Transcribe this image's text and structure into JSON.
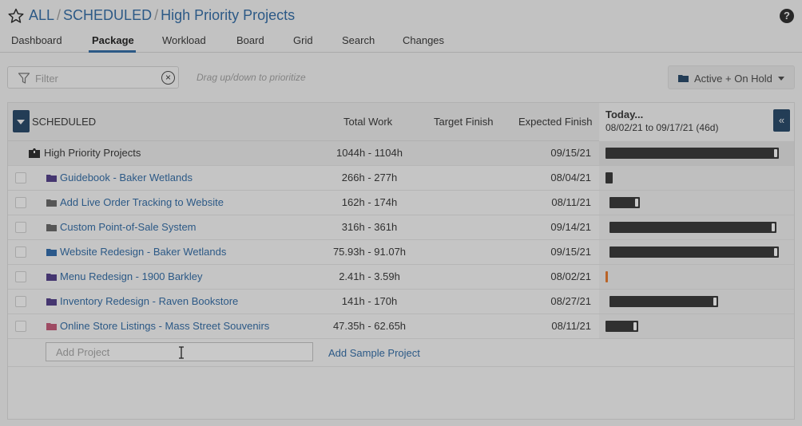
{
  "breadcrumb": {
    "items": [
      "ALL",
      "SCHEDULED",
      "High Priority Projects"
    ],
    "separator": "/"
  },
  "help_label": "?",
  "tabs": [
    {
      "label": "Dashboard"
    },
    {
      "label": "Package",
      "active": true
    },
    {
      "label": "Workload"
    },
    {
      "label": "Board"
    },
    {
      "label": "Grid"
    },
    {
      "label": "Search"
    },
    {
      "label": "Changes"
    }
  ],
  "filter": {
    "placeholder": "Filter",
    "value": ""
  },
  "drag_hint": "Drag up/down to prioritize",
  "status_filter": {
    "label": "Active + On Hold"
  },
  "table": {
    "group_label": "SCHEDULED",
    "columns": {
      "total_work": "Total Work",
      "target_finish": "Target Finish",
      "expected_finish": "Expected Finish"
    },
    "timeline": {
      "title": "Today...",
      "range": "08/02/21 to 09/17/21 (46d)"
    },
    "expand_glyph": "«",
    "parent": {
      "name": "High Priority Projects",
      "total_work": "1044h - 1104h",
      "expected_finish": "09/15/21",
      "bar": {
        "start": 0.0,
        "end": 0.95
      }
    },
    "rows": [
      {
        "name": "Guidebook - Baker Wetlands",
        "total_work": "266h - 277h",
        "expected_finish": "08/04/21",
        "folder_color": "#4a3a78",
        "bar": {
          "start": 0.0,
          "end": 0.04
        }
      },
      {
        "name": "Add Live Order Tracking to Website",
        "total_work": "162h - 174h",
        "expected_finish": "08/11/21",
        "folder_color": "#5c5c5c",
        "bar": {
          "start": 0.02,
          "end": 0.19
        }
      },
      {
        "name": "Custom Point-of-Sale System",
        "total_work": "316h - 361h",
        "expected_finish": "09/14/21",
        "folder_color": "#5c5c5c",
        "bar": {
          "start": 0.02,
          "end": 0.94
        }
      },
      {
        "name": "Website Redesign - Baker Wetlands",
        "total_work": "75.93h - 91.07h",
        "expected_finish": "09/15/21",
        "folder_color": "#2e5f94",
        "bar": {
          "start": 0.02,
          "end": 0.95
        }
      },
      {
        "name": "Menu Redesign - 1900 Barkley",
        "total_work": "2.41h - 3.59h",
        "expected_finish": "08/02/21",
        "folder_color": "#4a3a78",
        "bar": {
          "start": 0.0,
          "end": 0.012
        },
        "bar_color": "orange"
      },
      {
        "name": "Inventory Redesign - Raven Bookstore",
        "total_work": "141h - 170h",
        "expected_finish": "08/27/21",
        "folder_color": "#4a3a78",
        "bar": {
          "start": 0.02,
          "end": 0.62
        }
      },
      {
        "name": "Online Store Listings - Mass Street Souvenirs",
        "total_work": "47.35h - 62.65h",
        "expected_finish": "08/11/21",
        "folder_color": "#a8506a",
        "bar": {
          "start": 0.0,
          "end": 0.18
        }
      }
    ]
  },
  "add_project": {
    "placeholder": "Add Project",
    "sample_link": "Add Sample Project"
  },
  "colors": {
    "accent": "#2f5f8f",
    "button_dark": "#26415c",
    "bar": "#333333",
    "bar_orange": "#c56a2a"
  }
}
